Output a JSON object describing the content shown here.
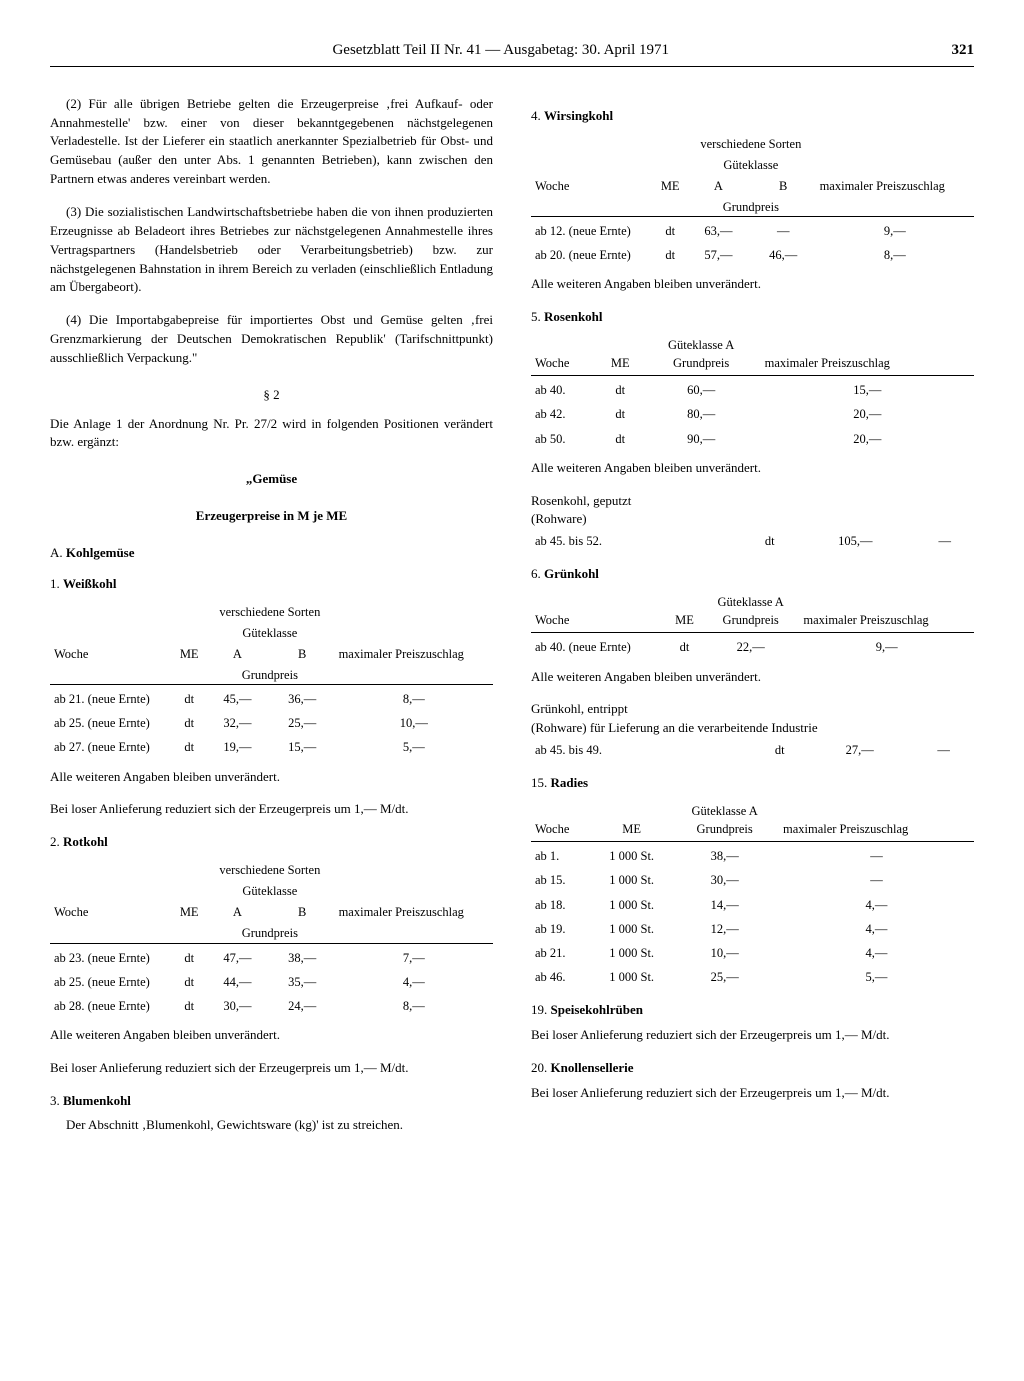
{
  "header": {
    "title": "Gesetzblatt Teil II Nr. 41 — Ausgabetag: 30. April 1971",
    "page": "321"
  },
  "left": {
    "p2": "(2) Für alle übrigen Betriebe gelten die Erzeugerpreise ‚frei Aufkauf- oder Annahmestelle' bzw. einer von dieser bekanntgegebenen nächstgelegenen Verladestelle. Ist der Lieferer ein staatlich anerkannter Spezialbetrieb für Obst- und Gemüsebau (außer den unter Abs. 1 genannten Betrieben), kann zwischen den Partnern etwas anderes vereinbart werden.",
    "p3": "(3) Die sozialistischen Landwirtschaftsbetriebe haben die von ihnen produzierten Erzeugnisse ab Beladeort ihres Betriebes zur nächstgelegenen Annahmestelle ihres Vertragspartners (Handelsbetrieb oder Verarbeitungsbetrieb) bzw. zur nächstgelegenen Bahnstation in ihrem Bereich zu verladen (einschließlich Entladung am Übergabeort).",
    "p4": "(4) Die Importabgabepreise für importiertes Obst und Gemüse gelten ‚frei Grenzmarkierung der Deutschen Demokratischen Republik' (Tarifschnittpunkt) ausschließlich Verpackung.\"",
    "s2": "§ 2",
    "s2txt": "Die Anlage 1 der Anordnung Nr. Pr. 27/2 wird in folgenden Positionen verändert bzw. ergänzt:",
    "gem": "„Gemüse",
    "erz": "Erzeugerpreise in M je ME",
    "A": "A. Kohlgemüse",
    "common": {
      "woche": "Woche",
      "me": "ME",
      "vers": "verschiedene Sorten",
      "gk": "Güteklasse",
      "gkA": "Güteklasse A",
      "a": "A",
      "b": "B",
      "gp": "Grundpreis",
      "max": "maximaler Preiszuschlag",
      "unv": "Alle weiteren Angaben bleiben unverändert.",
      "lose": "Bei loser Anlieferung reduziert sich der Erzeugerpreis um 1,— M/dt."
    },
    "i1": {
      "h": "1. Weißkohl",
      "rows": [
        [
          "ab 21. (neue Ernte)",
          "dt",
          "45,—",
          "36,—",
          "8,—"
        ],
        [
          "ab 25. (neue Ernte)",
          "dt",
          "32,—",
          "25,—",
          "10,—"
        ],
        [
          "ab 27. (neue Ernte)",
          "dt",
          "19,—",
          "15,—",
          "5,—"
        ]
      ]
    },
    "i2": {
      "h": "2. Rotkohl",
      "rows": [
        [
          "ab 23. (neue Ernte)",
          "dt",
          "47,—",
          "38,—",
          "7,—"
        ],
        [
          "ab 25. (neue Ernte)",
          "dt",
          "44,—",
          "35,—",
          "4,—"
        ],
        [
          "ab 28. (neue Ernte)",
          "dt",
          "30,—",
          "24,—",
          "8,—"
        ]
      ]
    },
    "i3": {
      "h": "3. Blumenkohl",
      "txt": "Der Abschnitt ‚Blumenkohl, Gewichtsware (kg)' ist zu streichen."
    }
  },
  "right": {
    "i4": {
      "h": "4. Wirsingkohl",
      "rows": [
        [
          "ab 12. (neue Ernte)",
          "dt",
          "63,—",
          "—",
          "9,—"
        ],
        [
          "ab 20. (neue Ernte)",
          "dt",
          "57,—",
          "46,—",
          "8,—"
        ]
      ]
    },
    "i5": {
      "h": "5. Rosenkohl",
      "rows": [
        [
          "ab 40.",
          "dt",
          "60,—",
          "15,—"
        ],
        [
          "ab 42.",
          "dt",
          "80,—",
          "20,—"
        ],
        [
          "ab 50.",
          "dt",
          "90,—",
          "20,—"
        ]
      ],
      "sub1": "Rosenkohl, geputzt",
      "sub2": "(Rohware)",
      "subrow": [
        "ab 45. bis 52.",
        "dt",
        "105,—",
        "—"
      ]
    },
    "i6": {
      "h": "6. Grünkohl",
      "rows": [
        [
          "ab 40. (neue Ernte)",
          "dt",
          "22,—",
          "9,—"
        ]
      ],
      "sub1": "Grünkohl, entrippt",
      "sub2": "(Rohware) für Lieferung an die verarbeitende Industrie",
      "subrow": [
        "ab 45. bis 49.",
        "dt",
        "27,—",
        "—"
      ]
    },
    "i15": {
      "h": "15. Radies",
      "rows": [
        [
          "ab  1.",
          "1 000 St.",
          "38,—",
          "—"
        ],
        [
          "ab 15.",
          "1 000 St.",
          "30,—",
          "—"
        ],
        [
          "ab 18.",
          "1 000 St.",
          "14,—",
          "4,—"
        ],
        [
          "ab 19.",
          "1 000 St.",
          "12,—",
          "4,—"
        ],
        [
          "ab 21.",
          "1 000 St.",
          "10,—",
          "4,—"
        ],
        [
          "ab 46.",
          "1 000 St.",
          "25,—",
          "5,—"
        ]
      ]
    },
    "i19": {
      "h": "19. Speisekohlrüben"
    },
    "i20": {
      "h": "20. Knollensellerie"
    }
  }
}
